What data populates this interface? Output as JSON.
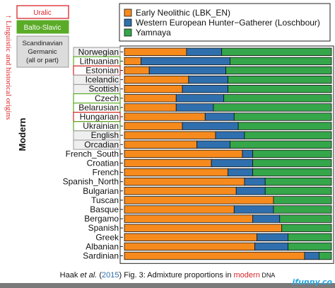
{
  "caption": {
    "author": "Haak",
    "etal": "et al.",
    "year": "2015",
    "fig": "Fig. 3:",
    "text_before": "Admixture proportions in",
    "highlight": "modern",
    "text_after": "DNA"
  },
  "side_label": {
    "arrow": "↑",
    "text": "Linguistic and historical origins"
  },
  "watermark": "ifunny.co",
  "key_boxes": [
    {
      "label": "Uralic",
      "style": "uralic"
    },
    {
      "label": "Balto-Slavic",
      "style": "balto"
    },
    {
      "label": "Scandinavian Germanic (all or part)",
      "style": "germanic"
    }
  ],
  "colors": {
    "early_neolithic": "#f78a1d",
    "whg": "#2f6fae",
    "yamnaya": "#35a64a",
    "uralic_red": "#d9262b",
    "balto_green": "#5aab27",
    "germanic_gray": "#c9c9c9",
    "bar_border": "#111111"
  },
  "chart_data": {
    "type": "bar",
    "orientation": "horizontal",
    "stacked": true,
    "ylabel": "Modern",
    "xlim": [
      0,
      100
    ],
    "legend_position": "top-right",
    "series": [
      {
        "name": "Early Neolithic (LBK_EN)",
        "color": "#f78a1d"
      },
      {
        "name": "Western European Hunter−Gatherer (Loschbour)",
        "color": "#2f6fae"
      },
      {
        "name": "Yamnaya",
        "color": "#35a64a"
      }
    ],
    "categories": [
      {
        "label": "Norwegian",
        "group": "germanic",
        "values": [
          30,
          17,
          53
        ]
      },
      {
        "label": "Lithuanian",
        "group": "balto",
        "values": [
          8,
          43,
          49
        ]
      },
      {
        "label": "Estonian",
        "group": "uralic",
        "values": [
          12,
          37,
          51
        ]
      },
      {
        "label": "Icelandic",
        "group": "germanic",
        "values": [
          31,
          19,
          50
        ]
      },
      {
        "label": "Scottish",
        "group": "germanic",
        "values": [
          28,
          22,
          50
        ]
      },
      {
        "label": "Czech",
        "group": "balto",
        "values": [
          25,
          23,
          52
        ]
      },
      {
        "label": "Belarusian",
        "group": "balto",
        "values": [
          25,
          18,
          57
        ]
      },
      {
        "label": "Hungarian",
        "group": "uralic",
        "values": [
          39,
          14,
          47
        ]
      },
      {
        "label": "Ukrainian",
        "group": "balto",
        "values": [
          28,
          27,
          45
        ]
      },
      {
        "label": "English",
        "group": "germanic",
        "values": [
          44,
          14,
          42
        ]
      },
      {
        "label": "Orcadian",
        "group": "germanic",
        "values": [
          35,
          16,
          49
        ]
      },
      {
        "label": "French_South",
        "group": "",
        "values": [
          57,
          5,
          38
        ]
      },
      {
        "label": "Croatian",
        "group": "",
        "values": [
          42,
          20,
          38
        ]
      },
      {
        "label": "French",
        "group": "",
        "values": [
          50,
          12,
          38
        ]
      },
      {
        "label": "Spanish_North",
        "group": "",
        "values": [
          58,
          10,
          32
        ]
      },
      {
        "label": "Bulgarian",
        "group": "",
        "values": [
          54,
          14,
          32
        ]
      },
      {
        "label": "Tuscan",
        "group": "",
        "values": [
          72,
          0,
          28
        ]
      },
      {
        "label": "Basque",
        "group": "",
        "values": [
          53,
          19,
          28
        ]
      },
      {
        "label": "Bergamo",
        "group": "",
        "values": [
          62,
          13,
          25
        ]
      },
      {
        "label": "Spanish",
        "group": "",
        "values": [
          76,
          0,
          24
        ]
      },
      {
        "label": "Greek",
        "group": "",
        "values": [
          64,
          15,
          21
        ]
      },
      {
        "label": "Albanian",
        "group": "",
        "values": [
          63,
          16,
          21
        ]
      },
      {
        "label": "Sardinian",
        "group": "",
        "values": [
          87,
          7,
          6
        ]
      }
    ]
  }
}
